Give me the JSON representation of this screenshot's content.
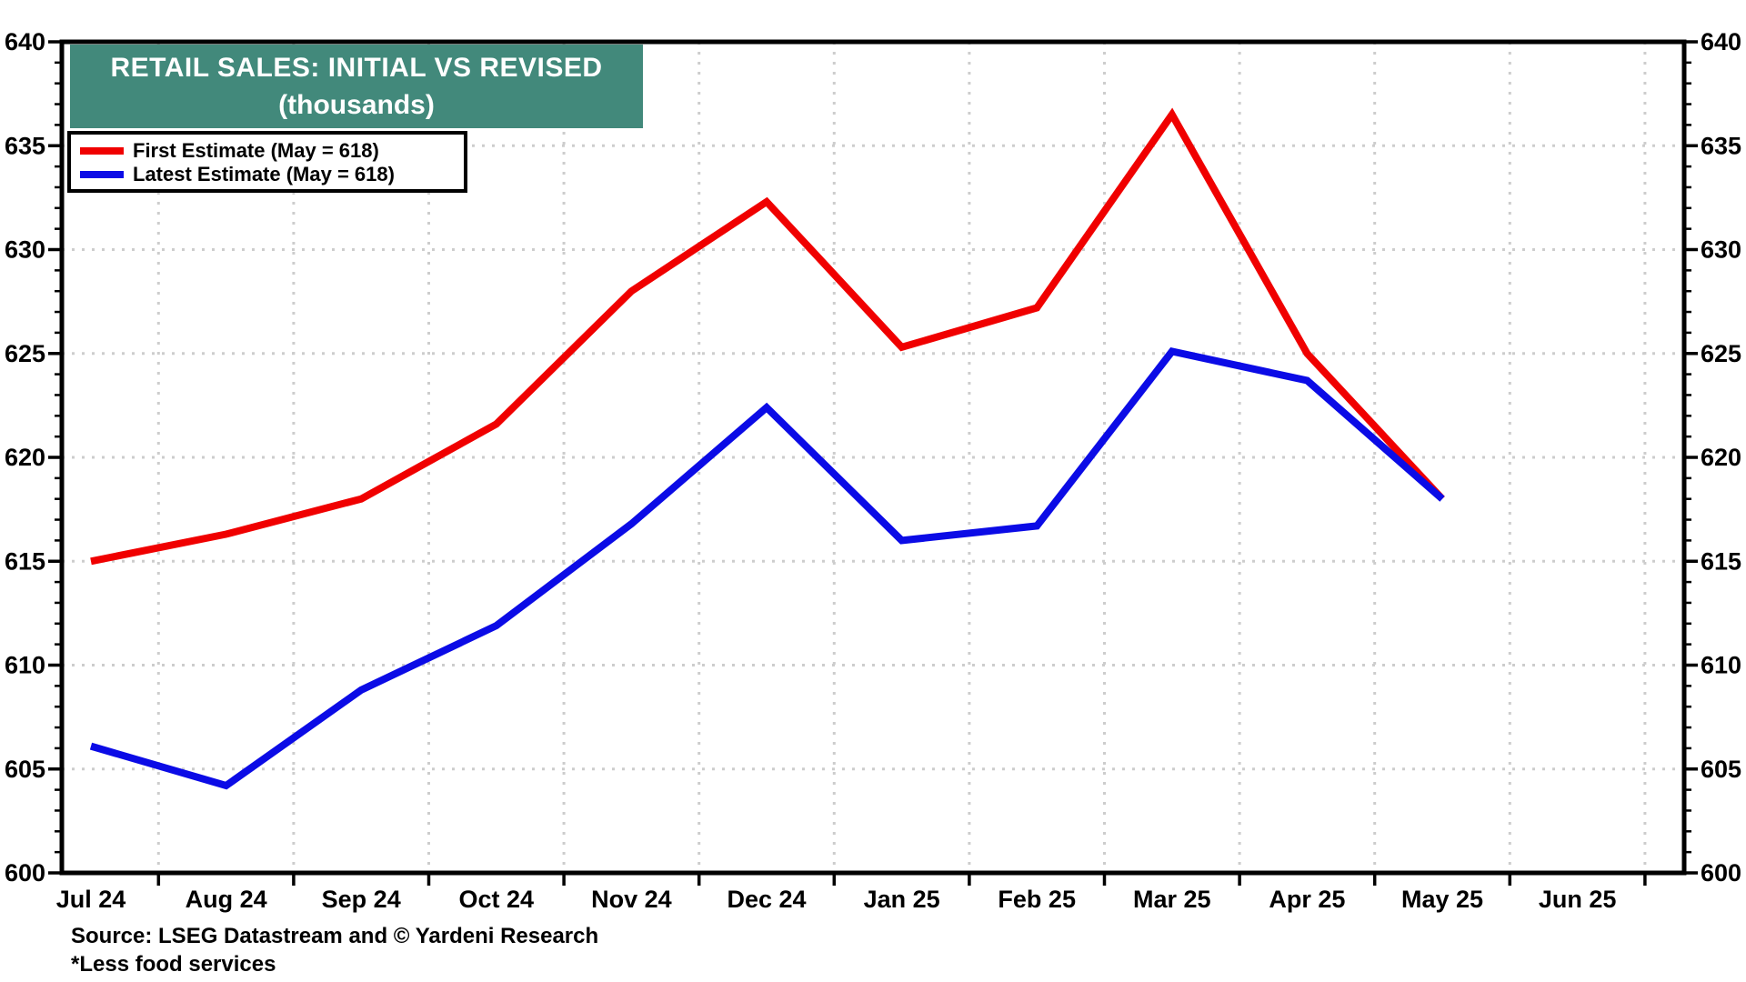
{
  "chart_data": {
    "type": "line",
    "title": "RETAIL SALES: INITIAL VS REVISED",
    "subtitle": "(thousands)",
    "categories": [
      "Jul 24",
      "Aug 24",
      "Sep 24",
      "Oct 24",
      "Nov 24",
      "Dec 24",
      "Jan 25",
      "Feb 25",
      "Mar 25",
      "Apr 25",
      "May 25",
      "Jun 25"
    ],
    "series": [
      {
        "name": "First Estimate (May = 618)",
        "color": "#f00000",
        "values": [
          615.0,
          616.3,
          618.0,
          621.6,
          628.0,
          632.3,
          625.3,
          627.2,
          636.5,
          625.0,
          618.0
        ]
      },
      {
        "name": "Latest Estimate (May = 618)",
        "color": "#0b0be6",
        "values": [
          606.1,
          604.2,
          608.8,
          611.9,
          616.8,
          622.4,
          616.0,
          616.7,
          625.1,
          623.7,
          618.0
        ]
      }
    ],
    "ylim": [
      600,
      640
    ],
    "y_ticks": [
      600,
      605,
      610,
      615,
      620,
      625,
      630,
      635,
      640
    ],
    "y_minor_step": 1,
    "grid": "dotted-major-both-axes",
    "legend_position": "top-left",
    "dual_y_axis": true
  },
  "footer": {
    "source": "Source: LSEG Datastream and © Yardeni Research",
    "footnote": "*Less food services"
  },
  "colors": {
    "title_bg": "#42897b",
    "title_fg": "#ffffff",
    "frame": "#000000",
    "gridline": "#cdcdcd",
    "background": "#ffffff"
  }
}
